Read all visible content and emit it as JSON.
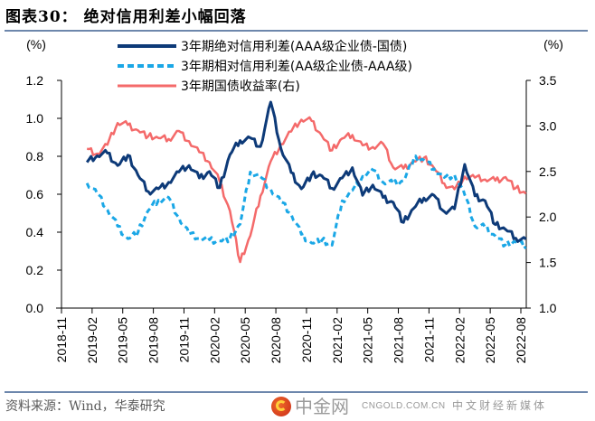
{
  "header": {
    "title": "图表30：  绝对信用利差小幅回落"
  },
  "footer": {
    "source": "资料来源：Wind，华泰研究"
  },
  "watermark": {
    "name": "中金网",
    "domain": "CNGOLD.COM.CN",
    "subtitle": "中文财经新媒体"
  },
  "colors": {
    "absolute": "#0d3a78",
    "relative": "#1aa7e6",
    "yield": "#f46a6a",
    "rule": "#6d87ac"
  },
  "chart_data": {
    "type": "line",
    "title": "绝对信用利差小幅回落",
    "left_axis": {
      "label": "(%)",
      "ylim": [
        0.0,
        1.2
      ],
      "ticks": [
        "0.0",
        "0.2",
        "0.4",
        "0.6",
        "0.8",
        "1.0",
        "1.2"
      ],
      "tick_values": [
        0,
        0.2,
        0.4,
        0.6,
        0.8,
        1.0,
        1.2
      ]
    },
    "right_axis": {
      "label": "(%)",
      "ylim": [
        1.0,
        3.5
      ],
      "ticks": [
        "1.0",
        "1.5",
        "2.0",
        "2.5",
        "3.0",
        "3.5"
      ],
      "tick_values": [
        1.0,
        1.5,
        2.0,
        2.5,
        3.0,
        3.5
      ]
    },
    "x_axis": {
      "ticks": [
        "2018-11",
        "2019-02",
        "2019-05",
        "2019-08",
        "2019-11",
        "2020-02",
        "2020-05",
        "2020-08",
        "2020-11",
        "2021-02",
        "2021-05",
        "2021-08",
        "2021-11",
        "2022-02",
        "2022-05",
        "2022-08"
      ],
      "range": [
        "2018-11",
        "2022-08"
      ]
    },
    "grid": false,
    "legend_position": "top-center",
    "x": [
      "2019-01",
      "2019-02",
      "2019-03",
      "2019-04",
      "2019-05",
      "2019-06",
      "2019-07",
      "2019-08",
      "2019-09",
      "2019-10",
      "2019-11",
      "2019-12",
      "2020-01",
      "2020-02",
      "2020-03",
      "2020-04",
      "2020-05",
      "2020-06",
      "2020-07",
      "2020-08",
      "2020-09",
      "2020-10",
      "2020-11",
      "2020-12",
      "2021-01",
      "2021-02",
      "2021-03",
      "2021-04",
      "2021-05",
      "2021-06",
      "2021-07",
      "2021-08",
      "2021-09",
      "2021-10",
      "2021-11",
      "2021-12",
      "2022-01",
      "2022-02",
      "2022-03",
      "2022-04",
      "2022-05",
      "2022-06",
      "2022-07",
      "2022-08"
    ],
    "series": [
      {
        "name": "3年期绝对信用利差(AAA级企业债-国债)",
        "axis": "left",
        "style": "solid",
        "values": [
          0.76,
          0.8,
          0.82,
          0.76,
          0.8,
          0.7,
          0.62,
          0.62,
          0.66,
          0.72,
          0.76,
          0.68,
          0.72,
          0.64,
          0.8,
          0.88,
          0.9,
          0.86,
          1.08,
          0.84,
          0.72,
          0.62,
          0.7,
          0.7,
          0.64,
          0.68,
          0.74,
          0.6,
          0.64,
          0.58,
          0.56,
          0.46,
          0.52,
          0.58,
          0.6,
          0.5,
          0.52,
          0.76,
          0.6,
          0.56,
          0.44,
          0.42,
          0.36,
          0.36
        ]
      },
      {
        "name": "3年期相对信用利差(AA级企业债-AAA级)",
        "axis": "left",
        "style": "dashed",
        "values": [
          0.65,
          0.6,
          0.52,
          0.44,
          0.36,
          0.4,
          0.52,
          0.56,
          0.58,
          0.48,
          0.4,
          0.36,
          0.36,
          0.36,
          0.36,
          0.44,
          0.72,
          0.7,
          0.62,
          0.56,
          0.5,
          0.38,
          0.34,
          0.36,
          0.34,
          0.56,
          0.62,
          0.7,
          0.72,
          0.66,
          0.66,
          0.68,
          0.78,
          0.78,
          0.74,
          0.68,
          0.7,
          0.6,
          0.44,
          0.42,
          0.38,
          0.34,
          0.34,
          0.32
        ]
      },
      {
        "name": "3年期国债收益率(右)",
        "axis": "right",
        "style": "solid",
        "values": [
          2.73,
          2.69,
          2.8,
          3.05,
          3.0,
          2.95,
          2.9,
          2.85,
          2.85,
          2.95,
          2.85,
          2.7,
          2.6,
          2.4,
          2.05,
          1.5,
          1.8,
          2.25,
          2.6,
          2.8,
          2.95,
          3.05,
          3.05,
          2.9,
          2.75,
          2.85,
          2.9,
          2.8,
          2.75,
          2.8,
          2.55,
          2.55,
          2.6,
          2.65,
          2.55,
          2.35,
          2.3,
          2.45,
          2.45,
          2.4,
          2.4,
          2.45,
          2.3,
          2.25
        ]
      }
    ]
  }
}
